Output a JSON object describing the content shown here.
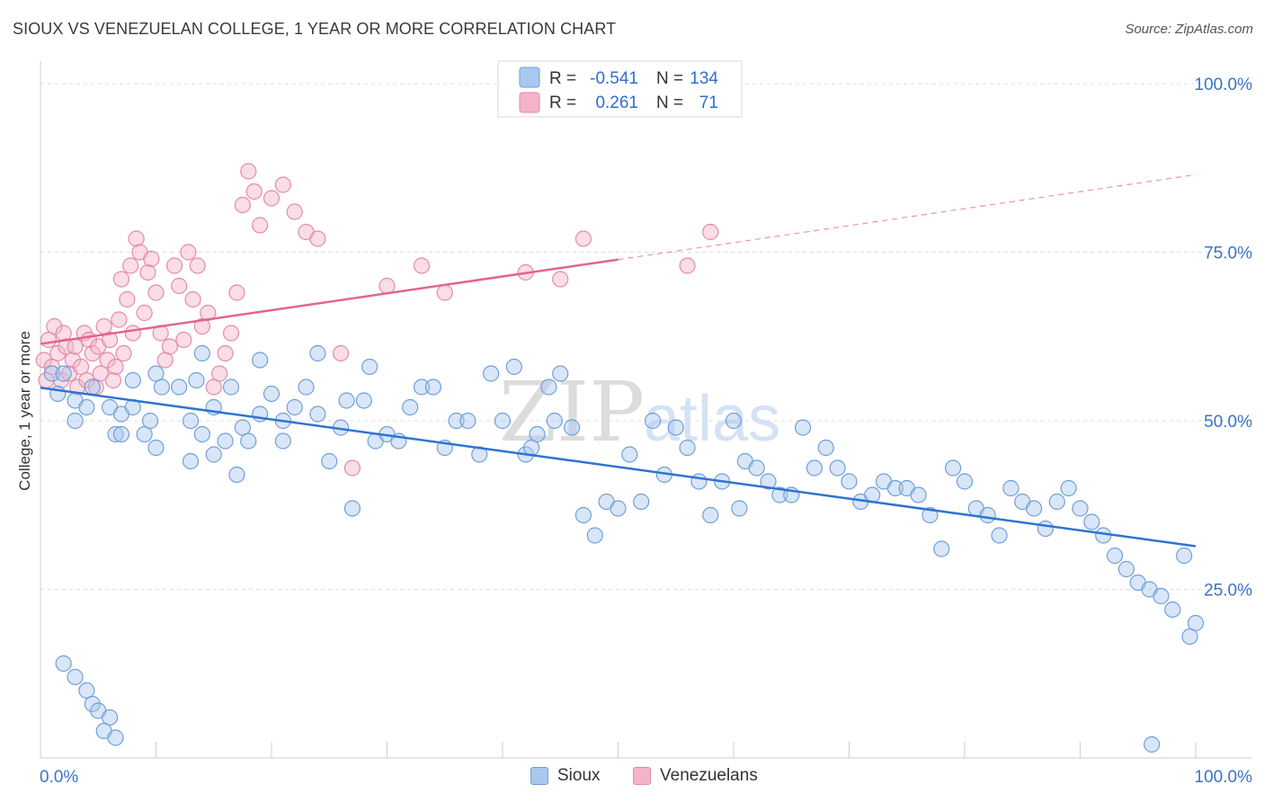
{
  "title": "SIOUX VS VENEZUELAN COLLEGE, 1 YEAR OR MORE CORRELATION CHART",
  "source": "Source: ZipAtlas.com",
  "watermark": {
    "zip": "ZIP",
    "atlas": "atlas"
  },
  "legend": {
    "rows": [
      {
        "r_label": "R =",
        "r_value": "-0.541",
        "n_label": "N =",
        "n_value": "134"
      },
      {
        "r_label": "R =",
        "r_value": "0.261",
        "n_label": "N =",
        "n_value": "71"
      }
    ]
  },
  "bottom_legend": {
    "sioux": "Sioux",
    "venezuelans": "Venezuelans"
  },
  "chart_data": {
    "type": "scatter",
    "title": "SIOUX VS VENEZUELAN COLLEGE, 1 YEAR OR MORE CORRELATION CHART",
    "xlabel": "",
    "ylabel": "College, 1 year or more",
    "xlim": [
      0,
      100
    ],
    "ylim": [
      0,
      102
    ],
    "x_tick_labels": [
      "0.0%",
      "100.0%"
    ],
    "y_tick_labels": [
      "25.0%",
      "50.0%",
      "75.0%",
      "100.0%"
    ],
    "y_ticks": [
      25,
      50,
      75,
      100
    ],
    "grid": "horizontal dashed",
    "legend_position": "top-center",
    "colors": {
      "sioux_fill": "#a9c8ef",
      "sioux_stroke": "#6f9fd8",
      "sioux_line": "#2f74d0",
      "venezuelans_fill": "#f5b3c8",
      "venezuelans_stroke": "#e48aa9",
      "venezuelans_line": "#e3648f",
      "axis_text": "#3b73c8",
      "grid": "#dddddd"
    },
    "series": [
      {
        "name": "Sioux",
        "r": -0.541,
        "n": 134,
        "trend": {
          "x": [
            0,
            100
          ],
          "y": [
            54.9,
            31.4
          ]
        },
        "points": [
          [
            1,
            57
          ],
          [
            1.5,
            54
          ],
          [
            3,
            53
          ],
          [
            2,
            57
          ],
          [
            3,
            50
          ],
          [
            4,
            52
          ],
          [
            4.5,
            55
          ],
          [
            6,
            52
          ],
          [
            6.5,
            48
          ],
          [
            7,
            51
          ],
          [
            7,
            48
          ],
          [
            8,
            56
          ],
          [
            8,
            52
          ],
          [
            9,
            48
          ],
          [
            9.5,
            50
          ],
          [
            10,
            46
          ],
          [
            10,
            57
          ],
          [
            10.5,
            55
          ],
          [
            12,
            55
          ],
          [
            13,
            44
          ],
          [
            13,
            50
          ],
          [
            13.5,
            56
          ],
          [
            14,
            48
          ],
          [
            14,
            60
          ],
          [
            15,
            45
          ],
          [
            15,
            52
          ],
          [
            16,
            47
          ],
          [
            16.5,
            55
          ],
          [
            17,
            42
          ],
          [
            17.5,
            49
          ],
          [
            18,
            47
          ],
          [
            19,
            59
          ],
          [
            19,
            51
          ],
          [
            20,
            54
          ],
          [
            21,
            47
          ],
          [
            21,
            50
          ],
          [
            22,
            52
          ],
          [
            23,
            55
          ],
          [
            24,
            60
          ],
          [
            24,
            51
          ],
          [
            25,
            44
          ],
          [
            26,
            49
          ],
          [
            26.5,
            53
          ],
          [
            27,
            37
          ],
          [
            28,
            53
          ],
          [
            28.5,
            58
          ],
          [
            29,
            47
          ],
          [
            30,
            48
          ],
          [
            31,
            47
          ],
          [
            32,
            52
          ],
          [
            33,
            55
          ],
          [
            34,
            55
          ],
          [
            35,
            46
          ],
          [
            36,
            50
          ],
          [
            37,
            50
          ],
          [
            38,
            45
          ],
          [
            39,
            57
          ],
          [
            40,
            50
          ],
          [
            41,
            58
          ],
          [
            42,
            45
          ],
          [
            42.5,
            46
          ],
          [
            43,
            48
          ],
          [
            44,
            55
          ],
          [
            44.5,
            50
          ],
          [
            45,
            57
          ],
          [
            46,
            49
          ],
          [
            47,
            36
          ],
          [
            48,
            33
          ],
          [
            49,
            38
          ],
          [
            50,
            37
          ],
          [
            51,
            45
          ],
          [
            52,
            38
          ],
          [
            53,
            50
          ],
          [
            54,
            42
          ],
          [
            55,
            49
          ],
          [
            56,
            46
          ],
          [
            57,
            41
          ],
          [
            58,
            36
          ],
          [
            59,
            41
          ],
          [
            60,
            50
          ],
          [
            60.5,
            37
          ],
          [
            61,
            44
          ],
          [
            62,
            43
          ],
          [
            63,
            41
          ],
          [
            64,
            39
          ],
          [
            65,
            39
          ],
          [
            66,
            49
          ],
          [
            67,
            43
          ],
          [
            68,
            46
          ],
          [
            69,
            43
          ],
          [
            70,
            41
          ],
          [
            71,
            38
          ],
          [
            72,
            39
          ],
          [
            73,
            41
          ],
          [
            74,
            40
          ],
          [
            75,
            40
          ],
          [
            76,
            39
          ],
          [
            77,
            36
          ],
          [
            78,
            31
          ],
          [
            79,
            43
          ],
          [
            80,
            41
          ],
          [
            81,
            37
          ],
          [
            82,
            36
          ],
          [
            83,
            33
          ],
          [
            84,
            40
          ],
          [
            85,
            38
          ],
          [
            86,
            37
          ],
          [
            87,
            34
          ],
          [
            88,
            38
          ],
          [
            89,
            40
          ],
          [
            90,
            37
          ],
          [
            91,
            35
          ],
          [
            92,
            33
          ],
          [
            93,
            30
          ],
          [
            94,
            28
          ],
          [
            95,
            26
          ],
          [
            96,
            25
          ],
          [
            97,
            24
          ],
          [
            98,
            22
          ],
          [
            99,
            30
          ],
          [
            99.5,
            18
          ],
          [
            100,
            20
          ],
          [
            96.2,
            2
          ],
          [
            2,
            14
          ],
          [
            3,
            12
          ],
          [
            4,
            10
          ],
          [
            4.5,
            8
          ],
          [
            5,
            7
          ],
          [
            6,
            6
          ],
          [
            5.5,
            4
          ],
          [
            6.5,
            3
          ]
        ]
      },
      {
        "name": "Venezuelans",
        "r": 0.261,
        "n": 71,
        "trend": {
          "x": [
            0,
            50
          ],
          "y": [
            61.4,
            73.9
          ]
        },
        "trend_extension": {
          "x": [
            50,
            100
          ],
          "y": [
            73.9,
            86.5
          ]
        },
        "points": [
          [
            0.3,
            59
          ],
          [
            0.5,
            56
          ],
          [
            0.7,
            62
          ],
          [
            1,
            58
          ],
          [
            1.2,
            64
          ],
          [
            1.5,
            60
          ],
          [
            1.8,
            56
          ],
          [
            2,
            63
          ],
          [
            2.2,
            61
          ],
          [
            2.5,
            57
          ],
          [
            2.8,
            59
          ],
          [
            3,
            61
          ],
          [
            3.2,
            55
          ],
          [
            3.5,
            58
          ],
          [
            3.8,
            63
          ],
          [
            4,
            56
          ],
          [
            4.2,
            62
          ],
          [
            4.5,
            60
          ],
          [
            4.8,
            55
          ],
          [
            5,
            61
          ],
          [
            5.2,
            57
          ],
          [
            5.5,
            64
          ],
          [
            5.8,
            59
          ],
          [
            6,
            62
          ],
          [
            6.3,
            56
          ],
          [
            6.5,
            58
          ],
          [
            6.8,
            65
          ],
          [
            7,
            71
          ],
          [
            7.2,
            60
          ],
          [
            7.5,
            68
          ],
          [
            7.8,
            73
          ],
          [
            8,
            63
          ],
          [
            8.3,
            77
          ],
          [
            8.6,
            75
          ],
          [
            9,
            66
          ],
          [
            9.3,
            72
          ],
          [
            9.6,
            74
          ],
          [
            10,
            69
          ],
          [
            10.4,
            63
          ],
          [
            10.8,
            59
          ],
          [
            11.2,
            61
          ],
          [
            11.6,
            73
          ],
          [
            12,
            70
          ],
          [
            12.4,
            62
          ],
          [
            12.8,
            75
          ],
          [
            13.2,
            68
          ],
          [
            13.6,
            73
          ],
          [
            14,
            64
          ],
          [
            14.5,
            66
          ],
          [
            15,
            55
          ],
          [
            15.5,
            57
          ],
          [
            16,
            60
          ],
          [
            16.5,
            63
          ],
          [
            17,
            69
          ],
          [
            17.5,
            82
          ],
          [
            18,
            87
          ],
          [
            18.5,
            84
          ],
          [
            19,
            79
          ],
          [
            20,
            83
          ],
          [
            21,
            85
          ],
          [
            22,
            81
          ],
          [
            23,
            78
          ],
          [
            24,
            77
          ],
          [
            26,
            60
          ],
          [
            27,
            43
          ],
          [
            30,
            70
          ],
          [
            33,
            73
          ],
          [
            35,
            69
          ],
          [
            42,
            72
          ],
          [
            45,
            71
          ],
          [
            47,
            77
          ],
          [
            56,
            73
          ],
          [
            58,
            78
          ]
        ]
      }
    ]
  }
}
